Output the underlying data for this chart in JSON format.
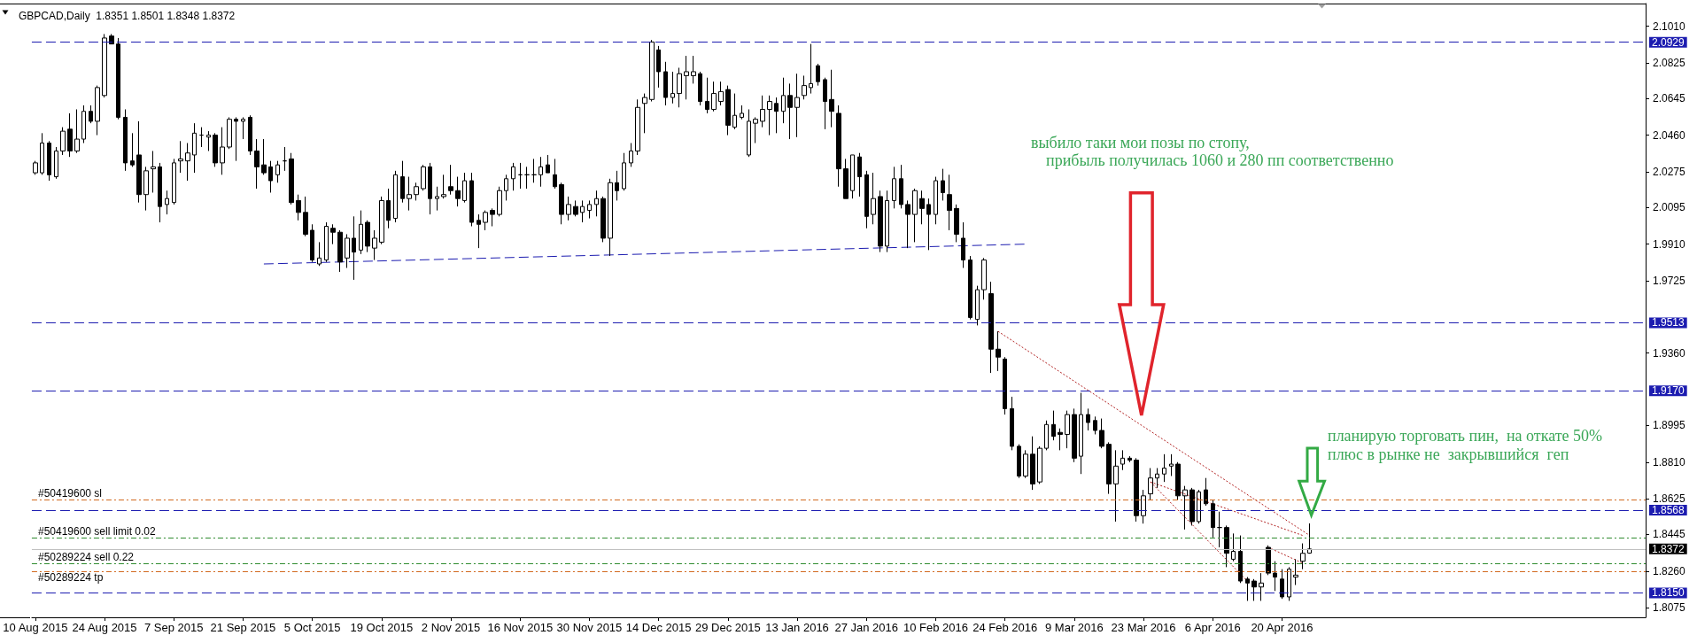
{
  "chart_data": {
    "type": "candlestick",
    "title": "GBPCAD,Daily  1.8351 1.8501 1.8348 1.8372",
    "color": "#000000",
    "grid": false,
    "categories": [
      "10 Aug 2015",
      null,
      null,
      null,
      null,
      null,
      null,
      null,
      null,
      null,
      "24 Aug 2015",
      null,
      null,
      null,
      null,
      null,
      null,
      null,
      null,
      null,
      "7 Sep 2015",
      null,
      null,
      null,
      null,
      null,
      null,
      null,
      null,
      null,
      "21 Sep 2015",
      null,
      null,
      null,
      null,
      null,
      null,
      null,
      null,
      null,
      "5 Oct 2015",
      null,
      null,
      null,
      null,
      null,
      null,
      null,
      null,
      null,
      "19 Oct 2015",
      null,
      null,
      null,
      null,
      null,
      null,
      null,
      null,
      null,
      "2 Nov 2015",
      null,
      null,
      null,
      null,
      null,
      null,
      null,
      null,
      null,
      "16 Nov 2015",
      null,
      null,
      null,
      null,
      null,
      null,
      null,
      null,
      null,
      "30 Nov 2015",
      null,
      null,
      null,
      null,
      null,
      null,
      null,
      null,
      null,
      "14 Dec 2015",
      null,
      null,
      null,
      null,
      null,
      null,
      null,
      null,
      null,
      "29 Dec 2015",
      null,
      null,
      null,
      null,
      null,
      null,
      null,
      null,
      null,
      "13 Jan 2016",
      null,
      null,
      null,
      null,
      null,
      null,
      null,
      null,
      null,
      "27 Jan 2016",
      null,
      null,
      null,
      null,
      null,
      null,
      null,
      null,
      null,
      "10 Feb 2016",
      null,
      null,
      null,
      null,
      null,
      null,
      null,
      null,
      null,
      "24 Feb 2016",
      null,
      null,
      null,
      null,
      null,
      null,
      null,
      null,
      null,
      "9 Mar 2016",
      null,
      null,
      null,
      null,
      null,
      null,
      null,
      null,
      null,
      "23 Mar 2016",
      null,
      null,
      null,
      null,
      null,
      null,
      null,
      null,
      null,
      "6 Apr 2016",
      null,
      null,
      null,
      null,
      null,
      null,
      null,
      null,
      null,
      "20 Apr 2016",
      null,
      null,
      null,
      null,
      null,
      null,
      null,
      null,
      null,
      null,
      null,
      null,
      null,
      null,
      null,
      null,
      null,
      null,
      null,
      null,
      null,
      null,
      null,
      null,
      null,
      null,
      null,
      null,
      null,
      null,
      null,
      null,
      null,
      null,
      null,
      null,
      null,
      null,
      null,
      null,
      null,
      null,
      null,
      null,
      null,
      null,
      null,
      null,
      null,
      null,
      null,
      null
    ],
    "ohlc": [
      [
        2.027,
        2.033,
        2.026,
        2.032
      ],
      [
        2.027,
        2.047,
        2.026,
        2.042
      ],
      [
        2.042,
        2.043,
        2.023,
        2.026
      ],
      [
        2.025,
        2.04,
        2.024,
        2.038
      ],
      [
        2.038,
        2.05,
        2.036,
        2.048
      ],
      [
        2.049,
        2.057,
        2.035,
        2.038
      ],
      [
        2.038,
        2.059,
        2.037,
        2.044
      ],
      [
        2.044,
        2.061,
        2.042,
        2.058
      ],
      [
        2.058,
        2.061,
        2.052,
        2.053
      ],
      [
        2.053,
        2.071,
        2.046,
        2.07
      ],
      [
        2.066,
        2.097,
        2.065,
        2.095
      ],
      [
        2.096,
        2.097,
        2.092,
        2.092
      ],
      [
        2.092,
        2.095,
        2.054,
        2.055
      ],
      [
        2.055,
        2.059,
        2.028,
        2.032
      ],
      [
        2.033,
        2.047,
        2.03,
        2.031
      ],
      [
        2.036,
        2.053,
        2.012,
        2.016
      ],
      [
        2.016,
        2.03,
        2.008,
        2.028
      ],
      [
        2.029,
        2.038,
        2.017,
        2.03
      ],
      [
        2.03,
        2.032,
        2.002,
        2.01
      ],
      [
        2.011,
        2.018,
        2.006,
        2.014
      ],
      [
        2.012,
        2.034,
        2.011,
        2.032
      ],
      [
        2.033,
        2.043,
        2.027,
        2.034
      ],
      [
        2.033,
        2.042,
        2.023,
        2.037
      ],
      [
        2.036,
        2.052,
        2.027,
        2.047
      ],
      [
        2.046,
        2.05,
        2.04,
        2.046
      ],
      [
        2.045,
        2.048,
        2.038,
        2.046
      ],
      [
        2.046,
        2.047,
        2.03,
        2.032
      ],
      [
        2.032,
        2.05,
        2.026,
        2.04
      ],
      [
        2.04,
        2.055,
        2.039,
        2.054
      ],
      [
        2.054,
        2.055,
        2.033,
        2.053
      ],
      [
        2.053,
        2.055,
        2.044,
        2.054
      ],
      [
        2.055,
        2.056,
        2.036,
        2.038
      ],
      [
        2.038,
        2.044,
        2.019,
        2.03
      ],
      [
        2.031,
        2.044,
        2.026,
        2.027
      ],
      [
        2.03,
        2.033,
        2.017,
        2.023
      ],
      [
        2.026,
        2.033,
        2.022,
        2.031
      ],
      [
        2.033,
        2.04,
        2.028,
        2.033
      ],
      [
        2.034,
        2.037,
        2.011,
        2.012
      ],
      [
        2.013,
        2.016,
        2.003,
        2.007
      ],
      [
        2.007,
        2.015,
        1.995,
        1.996
      ],
      [
        1.998,
        2.001,
        1.982,
        1.983
      ],
      [
        1.981,
        1.992,
        1.98,
        1.984
      ],
      [
        1.983,
        2.002,
        1.982,
        2.0
      ],
      [
        1.999,
        2.001,
        1.991,
        1.997
      ],
      [
        1.997,
        1.998,
        1.977,
        1.982
      ],
      [
        1.984,
        1.996,
        1.979,
        1.994
      ],
      [
        1.994,
        2.005,
        1.973,
        1.987
      ],
      [
        1.988,
        2.008,
        1.986,
        2.001
      ],
      [
        2.002,
        2.003,
        1.987,
        1.99
      ],
      [
        1.989,
        1.998,
        1.983,
        1.994
      ],
      [
        1.992,
        2.015,
        1.991,
        2.013
      ],
      [
        2.013,
        2.019,
        1.999,
        2.003
      ],
      [
        2.004,
        2.028,
        2.002,
        2.026
      ],
      [
        2.025,
        2.033,
        2.012,
        2.014
      ],
      [
        2.014,
        2.025,
        2.008,
        2.016
      ],
      [
        2.016,
        2.022,
        2.013,
        2.02
      ],
      [
        2.019,
        2.031,
        2.018,
        2.03
      ],
      [
        2.03,
        2.032,
        2.006,
        2.014
      ],
      [
        2.014,
        2.02,
        2.008,
        2.015
      ],
      [
        2.015,
        2.026,
        2.014,
        2.016
      ],
      [
        2.02,
        2.031,
        2.016,
        2.018
      ],
      [
        2.018,
        2.025,
        2.01,
        2.014
      ],
      [
        2.013,
        2.027,
        2.012,
        2.023
      ],
      [
        2.023,
        2.027,
        2.0,
        2.002
      ],
      [
        2.003,
        2.006,
        1.989,
        2.001
      ],
      [
        2.002,
        2.008,
        1.998,
        2.007
      ],
      [
        2.008,
        2.009,
        2.0,
        2.006
      ],
      [
        2.006,
        2.02,
        2.005,
        2.018
      ],
      [
        2.018,
        2.026,
        2.013,
        2.024
      ],
      [
        2.024,
        2.032,
        2.018,
        2.03
      ],
      [
        2.026,
        2.032,
        2.019,
        2.026
      ],
      [
        2.026,
        2.03,
        2.019,
        2.026
      ],
      [
        2.026,
        2.034,
        2.022,
        2.026
      ],
      [
        2.026,
        2.035,
        2.02,
        2.03
      ],
      [
        2.031,
        2.036,
        2.027,
        2.027
      ],
      [
        2.026,
        2.034,
        2.019,
        2.02
      ],
      [
        2.021,
        2.022,
        2.001,
        2.006
      ],
      [
        2.006,
        2.015,
        2.003,
        2.011
      ],
      [
        2.01,
        2.013,
        2.005,
        2.006
      ],
      [
        2.007,
        2.013,
        2.002,
        2.01
      ],
      [
        2.008,
        2.013,
        2.004,
        2.011
      ],
      [
        2.011,
        2.018,
        2.005,
        2.014
      ],
      [
        2.014,
        2.015,
        1.992,
        1.994
      ],
      [
        1.994,
        2.024,
        1.985,
        2.022
      ],
      [
        2.022,
        2.028,
        2.013,
        2.018
      ],
      [
        2.019,
        2.037,
        2.018,
        2.032
      ],
      [
        2.032,
        2.042,
        2.03,
        2.038
      ],
      [
        2.038,
        2.064,
        2.036,
        2.06
      ],
      [
        2.062,
        2.067,
        2.047,
        2.065
      ],
      [
        2.064,
        2.094,
        2.063,
        2.093
      ],
      [
        2.089,
        2.091,
        2.07,
        2.078
      ],
      [
        2.078,
        2.083,
        2.061,
        2.065
      ],
      [
        2.065,
        2.078,
        2.062,
        2.067
      ],
      [
        2.067,
        2.08,
        2.06,
        2.077
      ],
      [
        2.076,
        2.086,
        2.064,
        2.078
      ],
      [
        2.076,
        2.086,
        2.072,
        2.078
      ],
      [
        2.077,
        2.078,
        2.061,
        2.063
      ],
      [
        2.063,
        2.075,
        2.057,
        2.059
      ],
      [
        2.059,
        2.073,
        2.058,
        2.067
      ],
      [
        2.063,
        2.073,
        2.061,
        2.068
      ],
      [
        2.069,
        2.071,
        2.046,
        2.051
      ],
      [
        2.05,
        2.067,
        2.049,
        2.056
      ],
      [
        2.055,
        2.061,
        2.054,
        2.057
      ],
      [
        2.036,
        2.059,
        2.035,
        2.053
      ],
      [
        2.052,
        2.055,
        2.042,
        2.054
      ],
      [
        2.053,
        2.066,
        2.05,
        2.059
      ],
      [
        2.059,
        2.066,
        2.046,
        2.063
      ],
      [
        2.062,
        2.065,
        2.047,
        2.058
      ],
      [
        2.058,
        2.075,
        2.052,
        2.066
      ],
      [
        2.066,
        2.072,
        2.044,
        2.06
      ],
      [
        2.06,
        2.077,
        2.045,
        2.065
      ],
      [
        2.066,
        2.076,
        2.064,
        2.071
      ],
      [
        2.07,
        2.092,
        2.067,
        2.072
      ],
      [
        2.081,
        2.082,
        2.071,
        2.073
      ],
      [
        2.074,
        2.075,
        2.049,
        2.063
      ],
      [
        2.064,
        2.079,
        2.05,
        2.058
      ],
      [
        2.057,
        2.061,
        2.02,
        2.029
      ],
      [
        2.029,
        2.034,
        2.014,
        2.014
      ],
      [
        2.018,
        2.036,
        2.014,
        2.036
      ],
      [
        2.035,
        2.037,
        2.015,
        2.025
      ],
      [
        2.026,
        2.028,
        1.999,
        2.005
      ],
      [
        2.006,
        2.027,
        2.001,
        2.014
      ],
      [
        2.015,
        2.018,
        1.987,
        1.99
      ],
      [
        1.99,
        2.018,
        1.987,
        2.013
      ],
      [
        2.013,
        2.03,
        2.009,
        2.024
      ],
      [
        2.024,
        2.031,
        2.009,
        2.011
      ],
      [
        2.011,
        2.013,
        1.989,
        2.006
      ],
      [
        2.006,
        2.019,
        1.992,
        2.018
      ],
      [
        2.014,
        2.018,
        2.001,
        2.009
      ],
      [
        2.011,
        2.014,
        1.988,
        2.006
      ],
      [
        2.006,
        2.025,
        2.001,
        2.023
      ],
      [
        2.023,
        2.029,
        2.013,
        2.017
      ],
      [
        2.016,
        2.026,
        1.998,
        2.008
      ],
      [
        2.009,
        2.011,
        1.992,
        1.996
      ],
      [
        1.994,
        2.002,
        1.979,
        1.983
      ],
      [
        1.983,
        1.985,
        1.953,
        1.954
      ],
      [
        1.953,
        1.97,
        1.95,
        1.968
      ],
      [
        1.968,
        1.984,
        1.963,
        1.983
      ],
      [
        1.966,
        1.972,
        1.926,
        1.938
      ],
      [
        1.938,
        1.947,
        1.927,
        1.934
      ],
      [
        1.933,
        1.934,
        1.905,
        1.908
      ],
      [
        1.908,
        1.914,
        1.887,
        1.889
      ],
      [
        1.889,
        1.89,
        1.873,
        1.874
      ],
      [
        1.874,
        1.887,
        1.873,
        1.885
      ],
      [
        1.885,
        1.894,
        1.867,
        1.87
      ],
      [
        1.871,
        1.889,
        1.87,
        1.888
      ],
      [
        1.888,
        1.902,
        1.887,
        1.9
      ],
      [
        1.9,
        1.907,
        1.892,
        1.894
      ],
      [
        1.896,
        1.898,
        1.887,
        1.895
      ],
      [
        1.895,
        1.907,
        1.888,
        1.905
      ],
      [
        1.905,
        1.908,
        1.881,
        1.883
      ],
      [
        1.884,
        1.916,
        1.875,
        1.905
      ],
      [
        1.905,
        1.908,
        1.897,
        1.901
      ],
      [
        1.902,
        1.904,
        1.895,
        1.897
      ],
      [
        1.897,
        1.903,
        1.888,
        1.889
      ],
      [
        1.89,
        1.891,
        1.865,
        1.87
      ],
      [
        1.87,
        1.887,
        1.851,
        1.879
      ],
      [
        1.88,
        1.887,
        1.877,
        1.883
      ],
      [
        1.883,
        1.884,
        1.881,
        1.882
      ],
      [
        1.882,
        1.883,
        1.851,
        1.854
      ],
      [
        1.854,
        1.867,
        1.85,
        1.864
      ],
      [
        1.865,
        1.878,
        1.862,
        1.873
      ],
      [
        1.873,
        1.878,
        1.868,
        1.875
      ],
      [
        1.875,
        1.885,
        1.871,
        1.878
      ],
      [
        1.879,
        1.885,
        1.874,
        1.88
      ],
      [
        1.88,
        1.881,
        1.862,
        1.864
      ],
      [
        1.864,
        1.869,
        1.847,
        1.867
      ],
      [
        1.867,
        1.868,
        1.849,
        1.851
      ],
      [
        1.851,
        1.867,
        1.85,
        1.866
      ],
      [
        1.867,
        1.873,
        1.859,
        1.86
      ],
      [
        1.86,
        1.862,
        1.843,
        1.848
      ],
      [
        1.848,
        1.856,
        1.838,
        1.848
      ],
      [
        1.848,
        1.849,
        1.828,
        1.835
      ],
      [
        1.832,
        1.845,
        1.831,
        1.836
      ],
      [
        1.836,
        1.844,
        1.82,
        1.821
      ],
      [
        1.822,
        1.823,
        1.811,
        1.82
      ],
      [
        1.821,
        1.822,
        1.811,
        1.818
      ],
      [
        1.818,
        1.825,
        1.811,
        1.82
      ],
      [
        1.838,
        1.839,
        1.824,
        1.825
      ],
      [
        1.825,
        1.831,
        1.816,
        1.823
      ],
      [
        1.822,
        1.827,
        1.812,
        1.813
      ],
      [
        1.813,
        1.828,
        1.811,
        1.827
      ],
      [
        1.823,
        1.832,
        1.819,
        1.824
      ],
      [
        1.831,
        1.84,
        1.827,
        1.835
      ],
      [
        1.8351,
        1.8501,
        1.8348,
        1.8372
      ],
      null,
      null,
      null,
      null,
      null,
      null,
      null,
      null,
      null,
      null,
      null,
      null,
      null,
      null,
      null,
      null,
      null,
      null,
      null,
      null,
      null,
      null,
      null,
      null,
      null,
      null,
      null,
      null,
      null,
      null,
      null,
      null,
      null,
      null,
      null,
      null,
      null,
      null,
      null,
      null,
      null,
      null,
      null,
      null,
      null,
      null,
      null,
      null
    ],
    "series": [
      {
        "type": "line",
        "color": "#1c1cb0",
        "line_style": "dashed",
        "values": [
          null,
          null,
          null,
          null,
          null,
          null,
          null,
          null,
          null,
          null,
          null,
          null,
          null,
          null,
          null,
          null,
          null,
          null,
          null,
          null,
          null,
          null,
          null,
          null,
          null,
          null,
          null,
          null,
          null,
          null,
          null,
          null,
          null,
          1.981,
          null,
          null,
          null,
          null,
          null,
          null,
          null,
          null,
          null,
          null,
          null,
          null,
          null,
          null,
          null,
          null,
          null,
          null,
          null,
          null,
          null,
          null,
          null,
          null,
          null,
          null,
          null,
          null,
          null,
          null,
          null,
          null,
          null,
          null,
          null,
          null,
          null,
          null,
          null,
          null,
          null,
          null,
          null,
          null,
          null,
          null,
          null,
          null,
          null,
          null,
          null,
          null,
          null,
          null,
          null,
          null,
          null,
          null,
          null,
          null,
          null,
          null,
          null,
          null,
          null,
          null,
          null,
          null,
          null,
          null,
          null,
          null,
          null,
          null,
          null,
          null,
          null,
          null,
          null,
          null,
          null,
          null,
          null,
          null,
          null,
          null,
          null,
          null,
          null,
          null,
          null,
          null,
          null,
          null,
          null,
          null,
          null,
          null,
          null,
          null,
          null,
          null,
          null,
          null,
          null,
          null,
          null,
          null,
          null,
          1.991,
          null,
          null,
          null,
          null,
          null,
          null,
          null,
          null,
          null,
          null,
          null,
          null,
          null,
          null,
          null,
          null,
          null,
          null,
          null,
          null,
          null,
          null,
          null,
          null,
          null,
          null,
          null,
          null,
          null,
          null,
          null,
          null,
          null,
          null,
          null,
          null,
          null,
          null,
          null,
          null,
          null,
          null,
          null,
          null,
          null,
          null,
          null,
          null,
          null,
          null,
          null,
          null,
          null,
          null,
          null,
          null,
          null,
          null,
          null,
          null,
          null,
          null,
          null,
          null,
          null,
          null,
          null,
          null,
          null,
          null,
          null,
          null,
          null,
          null,
          null,
          null,
          null,
          null,
          null,
          null,
          null,
          null,
          null,
          null,
          null,
          null,
          null,
          null,
          null
        ]
      },
      {
        "type": "line",
        "color": "#b22222",
        "line_style": "dotted",
        "values": [
          null,
          null,
          null,
          null,
          null,
          null,
          null,
          null,
          null,
          null,
          null,
          null,
          null,
          null,
          null,
          null,
          null,
          null,
          null,
          null,
          null,
          null,
          null,
          null,
          null,
          null,
          null,
          null,
          null,
          null,
          null,
          null,
          null,
          null,
          null,
          null,
          null,
          null,
          null,
          null,
          null,
          null,
          null,
          null,
          null,
          null,
          null,
          null,
          null,
          null,
          null,
          null,
          null,
          null,
          null,
          null,
          null,
          null,
          null,
          null,
          null,
          null,
          null,
          null,
          null,
          null,
          null,
          null,
          null,
          null,
          null,
          null,
          null,
          null,
          null,
          null,
          null,
          null,
          null,
          null,
          null,
          null,
          null,
          null,
          null,
          null,
          null,
          null,
          null,
          null,
          null,
          null,
          null,
          null,
          null,
          null,
          null,
          null,
          null,
          null,
          null,
          null,
          null,
          null,
          null,
          null,
          null,
          null,
          null,
          null,
          null,
          null,
          null,
          null,
          null,
          null,
          null,
          null,
          null,
          null,
          null,
          null,
          null,
          null,
          null,
          null,
          null,
          null,
          null,
          null,
          null,
          null,
          null,
          null,
          null,
          null,
          null,
          null,
          null,
          1.947,
          null,
          null,
          null,
          null,
          null,
          null,
          null,
          null,
          null,
          null,
          null,
          null,
          null,
          null,
          null,
          null,
          null,
          null,
          null,
          null,
          null,
          null,
          null,
          null,
          null,
          null,
          null,
          null,
          null,
          null,
          null,
          null,
          null,
          null,
          null,
          null,
          null,
          null,
          null,
          null,
          null,
          null,
          null,
          null,
          1.844,
          null,
          null,
          null,
          null,
          null,
          null,
          null,
          null,
          null,
          null,
          null,
          null,
          null,
          null,
          null,
          null,
          null,
          null,
          null,
          null,
          null,
          null,
          null,
          null,
          null,
          null,
          null,
          null,
          null,
          null,
          null,
          null,
          null,
          null,
          null,
          null,
          null,
          null,
          null,
          null,
          null,
          null,
          null,
          null,
          null,
          null,
          null,
          null
        ]
      },
      {
        "type": "line",
        "color": "#b22222",
        "line_style": "dotted",
        "values": [
          null,
          null,
          null,
          null,
          null,
          null,
          null,
          null,
          null,
          null,
          null,
          null,
          null,
          null,
          null,
          null,
          null,
          null,
          null,
          null,
          null,
          null,
          null,
          null,
          null,
          null,
          null,
          null,
          null,
          null,
          null,
          null,
          null,
          null,
          null,
          null,
          null,
          null,
          null,
          null,
          null,
          null,
          null,
          null,
          null,
          null,
          null,
          null,
          null,
          null,
          null,
          null,
          null,
          null,
          null,
          null,
          null,
          null,
          null,
          null,
          null,
          null,
          null,
          null,
          null,
          null,
          null,
          null,
          null,
          null,
          null,
          null,
          null,
          null,
          null,
          null,
          null,
          null,
          null,
          null,
          null,
          null,
          null,
          null,
          null,
          null,
          null,
          null,
          null,
          null,
          null,
          null,
          null,
          null,
          null,
          null,
          null,
          null,
          null,
          null,
          null,
          null,
          null,
          null,
          null,
          null,
          null,
          null,
          null,
          null,
          null,
          null,
          null,
          null,
          null,
          null,
          null,
          null,
          null,
          null,
          null,
          null,
          null,
          null,
          null,
          null,
          null,
          null,
          null,
          null,
          null,
          null,
          null,
          null,
          null,
          null,
          null,
          null,
          null,
          null,
          null,
          null,
          null,
          null,
          null,
          null,
          null,
          null,
          null,
          null,
          null,
          null,
          null,
          null,
          null,
          null,
          null,
          null,
          null,
          null,
          null,
          1.871,
          null,
          null,
          null,
          null,
          null,
          null,
          null,
          null,
          null,
          null,
          null,
          null,
          null,
          null,
          null,
          null,
          null,
          null,
          null,
          null,
          null,
          1.844,
          null,
          null,
          null,
          null,
          null,
          null,
          null,
          null,
          null,
          null,
          null,
          null,
          null,
          null,
          null,
          null,
          null,
          null,
          null,
          null,
          null,
          null,
          null,
          null,
          null,
          null,
          null,
          null,
          null,
          null,
          null,
          null,
          null,
          null,
          null,
          null,
          null,
          null,
          null,
          null,
          null,
          null,
          null,
          null,
          null,
          null,
          null,
          null,
          null
        ]
      },
      {
        "type": "line",
        "color": "#b22222",
        "line_style": "dotted",
        "values": [
          null,
          null,
          null,
          null,
          null,
          null,
          null,
          null,
          null,
          null,
          null,
          null,
          null,
          null,
          null,
          null,
          null,
          null,
          null,
          null,
          null,
          null,
          null,
          null,
          null,
          null,
          null,
          null,
          null,
          null,
          null,
          null,
          null,
          null,
          null,
          null,
          null,
          null,
          null,
          null,
          null,
          null,
          null,
          null,
          null,
          null,
          null,
          null,
          null,
          null,
          null,
          null,
          null,
          null,
          null,
          null,
          null,
          null,
          null,
          null,
          null,
          null,
          null,
          null,
          null,
          null,
          null,
          null,
          null,
          null,
          null,
          null,
          null,
          null,
          null,
          null,
          null,
          null,
          null,
          null,
          null,
          null,
          null,
          null,
          null,
          null,
          null,
          null,
          null,
          null,
          null,
          null,
          null,
          null,
          null,
          null,
          null,
          null,
          null,
          null,
          null,
          null,
          null,
          null,
          null,
          null,
          null,
          null,
          null,
          null,
          null,
          null,
          null,
          null,
          null,
          null,
          null,
          null,
          null,
          null,
          null,
          null,
          null,
          null,
          null,
          null,
          null,
          null,
          null,
          null,
          null,
          null,
          null,
          null,
          null,
          null,
          null,
          null,
          null,
          null,
          null,
          null,
          null,
          null,
          null,
          null,
          null,
          null,
          null,
          null,
          null,
          null,
          null,
          null,
          null,
          null,
          null,
          null,
          null,
          null,
          null,
          1.871,
          null,
          null,
          null,
          null,
          null,
          null,
          null,
          null,
          null,
          null,
          null,
          null,
          null,
          1.821,
          null,
          null,
          null,
          null,
          null,
          null,
          null,
          null,
          null,
          null,
          null,
          null,
          null,
          null,
          null,
          null,
          null,
          null,
          null,
          null,
          null,
          null,
          null,
          null,
          null,
          null,
          null,
          null,
          null,
          null,
          null,
          null,
          null,
          null,
          null,
          null,
          null,
          null,
          null,
          null,
          null,
          null,
          null,
          null,
          null,
          null,
          null,
          null,
          null,
          null,
          null,
          null,
          null,
          null,
          null,
          null,
          null
        ]
      },
      {
        "type": "line",
        "color": "#b22222",
        "line_style": "dotted",
        "values": [
          null,
          null,
          null,
          null,
          null,
          null,
          null,
          null,
          null,
          null,
          null,
          null,
          null,
          null,
          null,
          null,
          null,
          null,
          null,
          null,
          null,
          null,
          null,
          null,
          null,
          null,
          null,
          null,
          null,
          null,
          null,
          null,
          null,
          null,
          null,
          null,
          null,
          null,
          null,
          null,
          null,
          null,
          null,
          null,
          null,
          null,
          null,
          null,
          null,
          null,
          null,
          null,
          null,
          null,
          null,
          null,
          null,
          null,
          null,
          null,
          null,
          null,
          null,
          null,
          null,
          null,
          null,
          null,
          null,
          null,
          null,
          null,
          null,
          null,
          null,
          null,
          null,
          null,
          null,
          null,
          null,
          null,
          null,
          null,
          null,
          null,
          null,
          null,
          null,
          null,
          null,
          null,
          null,
          null,
          null,
          null,
          null,
          null,
          null,
          null,
          null,
          null,
          null,
          null,
          null,
          null,
          null,
          null,
          null,
          null,
          null,
          null,
          null,
          null,
          null,
          null,
          null,
          null,
          null,
          null,
          null,
          null,
          null,
          null,
          null,
          null,
          null,
          null,
          null,
          null,
          null,
          null,
          null,
          null,
          null,
          null,
          null,
          null,
          null,
          null,
          null,
          null,
          null,
          null,
          null,
          null,
          null,
          null,
          null,
          null,
          null,
          null,
          null,
          null,
          null,
          null,
          null,
          null,
          null,
          null,
          null,
          null,
          null,
          null,
          null,
          null,
          null,
          null,
          null,
          null,
          null,
          null,
          null,
          null,
          null,
          null,
          null,
          null,
          1.838,
          null,
          null,
          null,
          null,
          1.83,
          null,
          null,
          null,
          null,
          null,
          null,
          null,
          null,
          null,
          null,
          null,
          null,
          null,
          null,
          null,
          null,
          null,
          null,
          null,
          null,
          null,
          null,
          null,
          null,
          null,
          null,
          null,
          null,
          null,
          null,
          null,
          null,
          null,
          null,
          null,
          null,
          null,
          null,
          null,
          null,
          null,
          null,
          null,
          null,
          null,
          null,
          null,
          null,
          null
        ]
      }
    ],
    "ylim": [
      1.8027,
      2.1124
    ],
    "yticks": [
      1.8075,
      {
        "value": 1.826,
        "label": "1.8260"
      },
      1.8445,
      1.8625,
      {
        "value": 1.881,
        "label": "1.8810"
      },
      1.8995,
      {
        "value": 1.936,
        "label": "1.9360"
      },
      1.9725,
      {
        "value": 1.991,
        "label": "1.9910"
      },
      2.0095,
      2.0275,
      {
        "value": 2.046,
        "label": "2.0460"
      },
      2.0645,
      2.0825,
      {
        "value": 2.101,
        "label": "2.1010"
      }
    ],
    "ref_lines": [
      {
        "axis": "y",
        "value": 2.0929,
        "label": "2.0929",
        "color": "#1c1cb0",
        "line_style": "dashed"
      },
      {
        "axis": "y",
        "value": 1.9513,
        "label": "1.9513",
        "color": "#1c1cb0",
        "line_style": "dashed"
      },
      {
        "axis": "y",
        "value": 1.917,
        "label": "1.9170",
        "color": "#1c1cb0",
        "line_style": "dashed"
      },
      {
        "axis": "y",
        "value": 1.8568,
        "label": "1.8568",
        "color": "#1c1cb0",
        "line_style": "dashed"
      },
      {
        "axis": "y",
        "value": 1.815,
        "label": "1.8150",
        "color": "#1c1cb0",
        "line_style": "dashed"
      },
      {
        "axis": "y",
        "value": 1.8372,
        "label": "1.8372",
        "color": "#c0c0c0",
        "line_style": "solid"
      },
      {
        "axis": "y",
        "value": 1.862,
        "label": "#50419600 sl",
        "color": "#d2691e",
        "line_style": "dashdot"
      },
      {
        "axis": "y",
        "value": 1.843,
        "label": "#50419600 sell limit 0.02",
        "color": "#2e8b2e",
        "line_style": "dashdot"
      },
      {
        "axis": "y",
        "value": 1.83,
        "label": "#50289224 sell 0.22",
        "color": "#2e8b2e",
        "line_style": "dashdot"
      },
      {
        "axis": "y",
        "value": 1.826,
        "label": "#50289224 tp",
        "color": "#d2691e",
        "line_style": "dashdot"
      }
    ],
    "annotations": [
      "выбило таки мои позы по стопу,",
      "прибыль получилась 1060 и 280 пп соответственно",
      "планирую торговать пин,  на откате 50%",
      "плюс в рынке не  закрывшийся  геп"
    ]
  }
}
